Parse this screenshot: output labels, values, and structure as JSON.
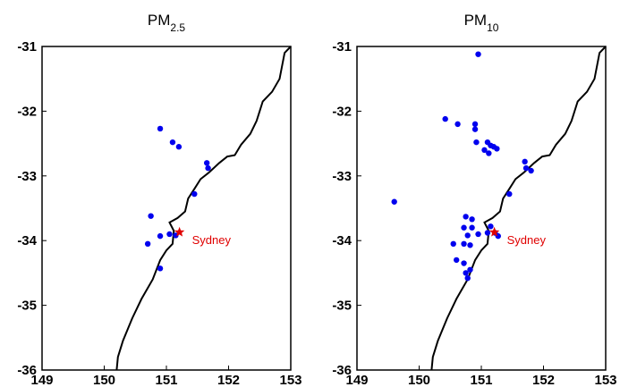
{
  "chart_data": [
    {
      "type": "scatter",
      "title_main": "PM",
      "title_sub": "2.5",
      "xlim": [
        149,
        153
      ],
      "ylim": [
        -36,
        -31
      ],
      "xticks": [
        "149",
        "150",
        "151",
        "152",
        "153"
      ],
      "yticks": [
        "-31",
        "-32",
        "-33",
        "-34",
        "-35",
        "-36"
      ],
      "city": {
        "name": "Sydney",
        "lon": 151.21,
        "lat": -33.87
      },
      "stations": [
        {
          "lon": 150.9,
          "lat": -32.27
        },
        {
          "lon": 151.1,
          "lat": -32.48
        },
        {
          "lon": 151.2,
          "lat": -32.55
        },
        {
          "lon": 151.65,
          "lat": -32.8
        },
        {
          "lon": 151.67,
          "lat": -32.88
        },
        {
          "lon": 151.45,
          "lat": -33.28
        },
        {
          "lon": 150.75,
          "lat": -33.62
        },
        {
          "lon": 150.9,
          "lat": -33.93
        },
        {
          "lon": 151.05,
          "lat": -33.9
        },
        {
          "lon": 151.15,
          "lat": -33.92
        },
        {
          "lon": 150.7,
          "lat": -34.05
        },
        {
          "lon": 150.9,
          "lat": -34.43
        }
      ]
    },
    {
      "type": "scatter",
      "title_main": "PM",
      "title_sub": "10",
      "xlim": [
        149,
        153
      ],
      "ylim": [
        -36,
        -31
      ],
      "xticks": [
        "149",
        "150",
        "151",
        "152",
        "153"
      ],
      "yticks": [
        "-31",
        "-32",
        "-33",
        "-34",
        "-35",
        "-36"
      ],
      "city": {
        "name": "Sydney",
        "lon": 151.21,
        "lat": -33.87
      },
      "stations": [
        {
          "lon": 150.95,
          "lat": -31.12
        },
        {
          "lon": 150.42,
          "lat": -32.12
        },
        {
          "lon": 150.62,
          "lat": -32.2
        },
        {
          "lon": 150.9,
          "lat": -32.2
        },
        {
          "lon": 150.9,
          "lat": -32.28
        },
        {
          "lon": 150.92,
          "lat": -32.48
        },
        {
          "lon": 151.1,
          "lat": -32.48
        },
        {
          "lon": 151.15,
          "lat": -32.53
        },
        {
          "lon": 151.2,
          "lat": -32.55
        },
        {
          "lon": 151.25,
          "lat": -32.58
        },
        {
          "lon": 151.05,
          "lat": -32.6
        },
        {
          "lon": 151.12,
          "lat": -32.65
        },
        {
          "lon": 151.7,
          "lat": -32.78
        },
        {
          "lon": 151.72,
          "lat": -32.88
        },
        {
          "lon": 151.8,
          "lat": -32.92
        },
        {
          "lon": 151.45,
          "lat": -33.28
        },
        {
          "lon": 149.6,
          "lat": -33.4
        },
        {
          "lon": 150.75,
          "lat": -33.63
        },
        {
          "lon": 150.85,
          "lat": -33.67
        },
        {
          "lon": 150.72,
          "lat": -33.8
        },
        {
          "lon": 150.85,
          "lat": -33.8
        },
        {
          "lon": 151.15,
          "lat": -33.78
        },
        {
          "lon": 150.78,
          "lat": -33.92
        },
        {
          "lon": 150.95,
          "lat": -33.9
        },
        {
          "lon": 151.1,
          "lat": -33.88
        },
        {
          "lon": 151.22,
          "lat": -33.88
        },
        {
          "lon": 151.27,
          "lat": -33.93
        },
        {
          "lon": 150.55,
          "lat": -34.05
        },
        {
          "lon": 150.72,
          "lat": -34.05
        },
        {
          "lon": 150.82,
          "lat": -34.07
        },
        {
          "lon": 150.6,
          "lat": -34.3
        },
        {
          "lon": 150.72,
          "lat": -34.35
        },
        {
          "lon": 150.82,
          "lat": -34.45
        },
        {
          "lon": 150.75,
          "lat": -34.5
        },
        {
          "lon": 150.78,
          "lat": -34.58
        }
      ]
    }
  ]
}
